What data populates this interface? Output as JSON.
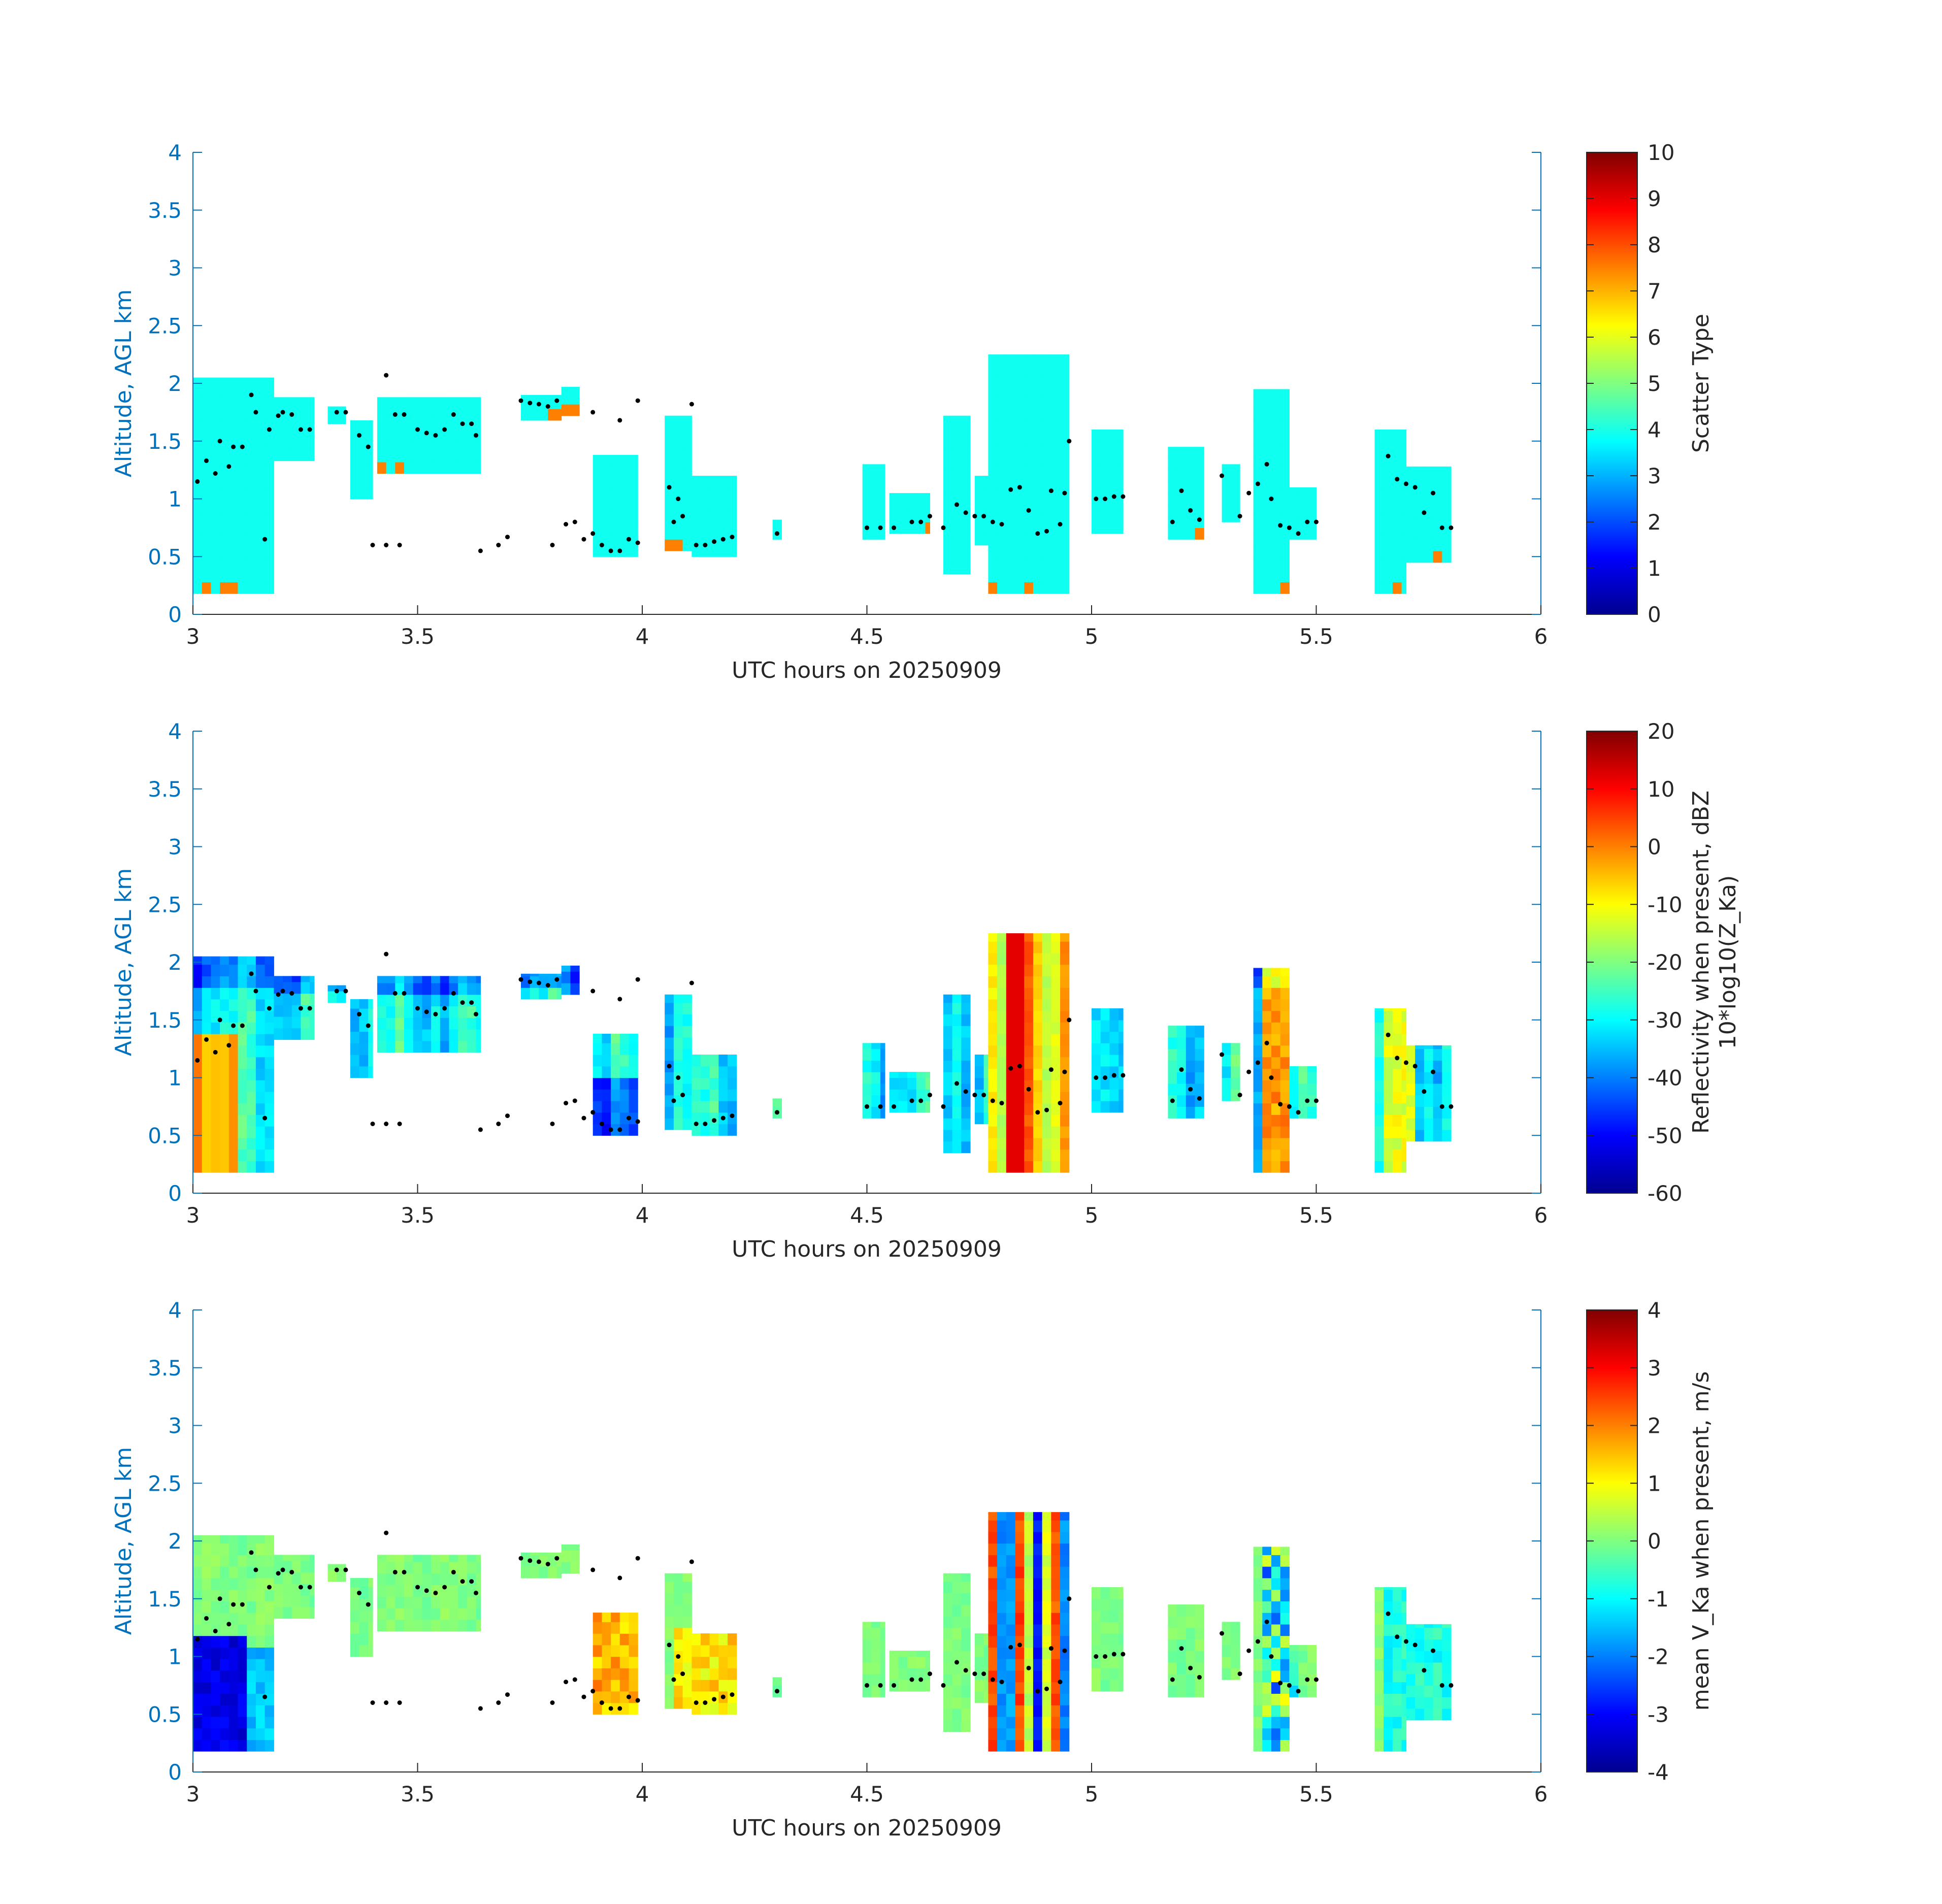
{
  "chart_data": [
    {
      "type": "heatmap",
      "panel": "scatter-type",
      "xlabel": "UTC hours on 20250909",
      "ylabel": "Altitude, AGL km",
      "xlim": [
        3,
        6
      ],
      "ylim": [
        0,
        4
      ],
      "xticks": [
        "3",
        "3.5",
        "4",
        "4.5",
        "5",
        "5.5",
        "6"
      ],
      "yticks": [
        "0",
        "0.5",
        "1",
        "1.5",
        "2",
        "2.5",
        "3",
        "3.5",
        "4"
      ],
      "colorbar": {
        "label": "Scatter Type",
        "label_sub": "",
        "range": [
          0,
          10
        ],
        "ticks": [
          "0",
          "1",
          "2",
          "3",
          "4",
          "5",
          "6",
          "7",
          "8",
          "9",
          "10"
        ]
      }
    },
    {
      "type": "heatmap",
      "panel": "reflectivity",
      "xlabel": "UTC hours on 20250909",
      "ylabel": "Altitude, AGL km",
      "xlim": [
        3,
        6
      ],
      "ylim": [
        0,
        4
      ],
      "xticks": [
        "3",
        "3.5",
        "4",
        "4.5",
        "5",
        "5.5",
        "6"
      ],
      "yticks": [
        "0",
        "0.5",
        "1",
        "1.5",
        "2",
        "2.5",
        "3",
        "3.5",
        "4"
      ],
      "colorbar": {
        "label": "Reflectivity when present, dBZ",
        "label_sub": "10*log10(Z_Ka)",
        "range": [
          -60,
          20
        ],
        "ticks": [
          "-60",
          "-50",
          "-40",
          "-30",
          "-20",
          "-10",
          "0",
          "10",
          "20"
        ]
      }
    },
    {
      "type": "heatmap",
      "panel": "velocity",
      "xlabel": "UTC hours on 20250909",
      "ylabel": "Altitude, AGL km",
      "xlim": [
        3,
        6
      ],
      "ylim": [
        0,
        4
      ],
      "xticks": [
        "3",
        "3.5",
        "4",
        "4.5",
        "5",
        "5.5",
        "6"
      ],
      "yticks": [
        "0",
        "0.5",
        "1",
        "1.5",
        "2",
        "2.5",
        "3",
        "3.5",
        "4"
      ],
      "colorbar": {
        "label": "mean V_Ka when present, m/s",
        "label_sub": "",
        "range": [
          -4,
          4
        ],
        "ticks": [
          "-4",
          "-3",
          "-2",
          "-1",
          "0",
          "1",
          "2",
          "3",
          "4"
        ]
      }
    }
  ],
  "cloud_columns": [
    {
      "t0": 3.0,
      "t1": 3.18,
      "b": 0.18,
      "top": 2.05
    },
    {
      "t0": 3.18,
      "t1": 3.27,
      "b": 1.33,
      "top": 1.88
    },
    {
      "t0": 3.3,
      "t1": 3.34,
      "b": 1.65,
      "top": 1.8
    },
    {
      "t0": 3.35,
      "t1": 3.4,
      "b": 1.0,
      "top": 1.68
    },
    {
      "t0": 3.41,
      "t1": 3.64,
      "b": 1.22,
      "top": 1.88
    },
    {
      "t0": 3.73,
      "t1": 3.82,
      "b": 1.68,
      "top": 1.9
    },
    {
      "t0": 3.82,
      "t1": 3.86,
      "b": 1.72,
      "top": 1.97
    },
    {
      "t0": 3.89,
      "t1": 3.99,
      "b": 0.5,
      "top": 1.38
    },
    {
      "t0": 4.05,
      "t1": 4.11,
      "b": 0.55,
      "top": 1.72
    },
    {
      "t0": 4.11,
      "t1": 4.21,
      "b": 0.5,
      "top": 1.2
    },
    {
      "t0": 4.29,
      "t1": 4.31,
      "b": 0.65,
      "top": 0.82
    },
    {
      "t0": 4.49,
      "t1": 4.54,
      "b": 0.65,
      "top": 1.3
    },
    {
      "t0": 4.55,
      "t1": 4.64,
      "b": 0.7,
      "top": 1.05
    },
    {
      "t0": 4.67,
      "t1": 4.73,
      "b": 0.35,
      "top": 1.72
    },
    {
      "t0": 4.74,
      "t1": 4.77,
      "b": 0.6,
      "top": 1.2
    },
    {
      "t0": 4.77,
      "t1": 4.95,
      "b": 0.18,
      "top": 2.25
    },
    {
      "t0": 5.0,
      "t1": 5.07,
      "b": 0.7,
      "top": 1.6
    },
    {
      "t0": 5.17,
      "t1": 5.25,
      "b": 0.65,
      "top": 1.45
    },
    {
      "t0": 5.29,
      "t1": 5.33,
      "b": 0.8,
      "top": 1.3
    },
    {
      "t0": 5.36,
      "t1": 5.44,
      "b": 0.18,
      "top": 1.95
    },
    {
      "t0": 5.44,
      "t1": 5.5,
      "b": 0.65,
      "top": 1.1
    },
    {
      "t0": 5.63,
      "t1": 5.7,
      "b": 0.18,
      "top": 1.6
    },
    {
      "t0": 5.7,
      "t1": 5.8,
      "b": 0.45,
      "top": 1.28
    }
  ],
  "base_points": [
    [
      3.01,
      1.15
    ],
    [
      3.03,
      1.33
    ],
    [
      3.05,
      1.22
    ],
    [
      3.06,
      1.5
    ],
    [
      3.08,
      1.28
    ],
    [
      3.09,
      1.45
    ],
    [
      3.11,
      1.45
    ],
    [
      3.13,
      1.9
    ],
    [
      3.14,
      1.75
    ],
    [
      3.16,
      0.65
    ],
    [
      3.17,
      1.6
    ],
    [
      3.19,
      1.72
    ],
    [
      3.2,
      1.75
    ],
    [
      3.22,
      1.73
    ],
    [
      3.24,
      1.6
    ],
    [
      3.26,
      1.6
    ],
    [
      3.32,
      1.75
    ],
    [
      3.34,
      1.75
    ],
    [
      3.37,
      1.55
    ],
    [
      3.39,
      1.45
    ],
    [
      3.4,
      0.6
    ],
    [
      3.43,
      2.07
    ],
    [
      3.43,
      0.6
    ],
    [
      3.45,
      1.73
    ],
    [
      3.46,
      0.6
    ],
    [
      3.47,
      1.73
    ],
    [
      3.5,
      1.6
    ],
    [
      3.52,
      1.57
    ],
    [
      3.54,
      1.55
    ],
    [
      3.56,
      1.6
    ],
    [
      3.58,
      1.73
    ],
    [
      3.6,
      1.65
    ],
    [
      3.62,
      1.65
    ],
    [
      3.63,
      1.55
    ],
    [
      3.64,
      0.55
    ],
    [
      3.68,
      0.6
    ],
    [
      3.7,
      0.67
    ],
    [
      3.73,
      1.85
    ],
    [
      3.75,
      1.83
    ],
    [
      3.77,
      1.82
    ],
    [
      3.79,
      1.8
    ],
    [
      3.81,
      1.85
    ],
    [
      3.8,
      0.6
    ],
    [
      3.83,
      0.78
    ],
    [
      3.85,
      0.8
    ],
    [
      3.87,
      0.65
    ],
    [
      3.89,
      0.7
    ],
    [
      3.91,
      0.6
    ],
    [
      3.93,
      0.55
    ],
    [
      3.95,
      0.55
    ],
    [
      3.97,
      0.65
    ],
    [
      3.99,
      0.62
    ],
    [
      3.89,
      1.75
    ],
    [
      3.95,
      1.68
    ],
    [
      3.99,
      1.85
    ],
    [
      4.06,
      1.1
    ],
    [
      4.07,
      0.8
    ],
    [
      4.08,
      1.0
    ],
    [
      4.09,
      0.85
    ],
    [
      4.11,
      1.82
    ],
    [
      4.12,
      0.6
    ],
    [
      4.14,
      0.6
    ],
    [
      4.16,
      0.63
    ],
    [
      4.18,
      0.65
    ],
    [
      4.2,
      0.67
    ],
    [
      4.3,
      0.7
    ],
    [
      4.5,
      0.75
    ],
    [
      4.53,
      0.75
    ],
    [
      4.56,
      0.75
    ],
    [
      4.6,
      0.8
    ],
    [
      4.62,
      0.8
    ],
    [
      4.64,
      0.85
    ],
    [
      4.67,
      0.75
    ],
    [
      4.7,
      0.95
    ],
    [
      4.72,
      0.88
    ],
    [
      4.74,
      0.85
    ],
    [
      4.76,
      0.85
    ],
    [
      4.78,
      0.8
    ],
    [
      4.8,
      0.78
    ],
    [
      4.82,
      1.08
    ],
    [
      4.84,
      1.1
    ],
    [
      4.86,
      0.9
    ],
    [
      4.88,
      0.7
    ],
    [
      4.9,
      0.72
    ],
    [
      4.91,
      1.07
    ],
    [
      4.93,
      0.78
    ],
    [
      4.94,
      1.05
    ],
    [
      4.95,
      1.5
    ],
    [
      5.01,
      1.0
    ],
    [
      5.03,
      1.0
    ],
    [
      5.05,
      1.02
    ],
    [
      5.07,
      1.02
    ],
    [
      5.18,
      0.8
    ],
    [
      5.2,
      1.07
    ],
    [
      5.22,
      0.9
    ],
    [
      5.24,
      0.82
    ],
    [
      5.29,
      1.2
    ],
    [
      5.33,
      0.85
    ],
    [
      5.35,
      1.05
    ],
    [
      5.37,
      1.13
    ],
    [
      5.39,
      1.3
    ],
    [
      5.4,
      1.0
    ],
    [
      5.42,
      0.77
    ],
    [
      5.44,
      0.75
    ],
    [
      5.46,
      0.7
    ],
    [
      5.48,
      0.8
    ],
    [
      5.5,
      0.8
    ],
    [
      5.66,
      1.37
    ],
    [
      5.68,
      1.17
    ],
    [
      5.7,
      1.13
    ],
    [
      5.72,
      1.1
    ],
    [
      5.74,
      0.88
    ],
    [
      5.76,
      1.05
    ],
    [
      5.78,
      0.75
    ],
    [
      5.8,
      0.75
    ]
  ]
}
